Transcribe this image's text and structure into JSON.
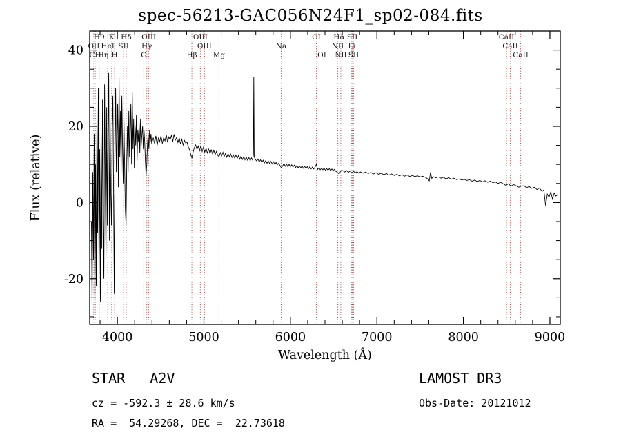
{
  "chart_data": {
    "type": "line",
    "title": "spec-56213-GAC056N24F1_sp02-084.fits",
    "xlabel": "Wavelength (Å)",
    "ylabel": "Flux (relative)",
    "xlim": [
      3680,
      9120
    ],
    "ylim": [
      -32,
      45
    ],
    "xticks": [
      4000,
      5000,
      6000,
      7000,
      8000,
      9000
    ],
    "yticks": [
      -20,
      0,
      20,
      40
    ],
    "grid": false,
    "legend": "none",
    "line_color": "#000000",
    "marker_line_color": "#a04848",
    "spectral_lines": [
      {
        "label": "H9",
        "wavelength": 3790,
        "row": 1
      },
      {
        "label": "K",
        "wavelength": 3934,
        "row": 1
      },
      {
        "label": "Hδ",
        "wavelength": 4102,
        "row": 1
      },
      {
        "label": "OIII",
        "wavelength": 4363,
        "row": 1
      },
      {
        "label": "OIII",
        "wavelength": 4959,
        "row": 1
      },
      {
        "label": "OI",
        "wavelength": 6300,
        "row": 1
      },
      {
        "label": "Hα",
        "wavelength": 6563,
        "row": 1
      },
      {
        "label": "SII",
        "wavelength": 6716,
        "row": 1
      },
      {
        "label": "CaII",
        "wavelength": 8498,
        "row": 1
      },
      {
        "label": "OII",
        "wavelength": 3727,
        "row": 2
      },
      {
        "label": "HeI",
        "wavelength": 3889,
        "row": 2
      },
      {
        "label": "SII",
        "wavelength": 4072,
        "row": 2
      },
      {
        "label": "Hγ",
        "wavelength": 4340,
        "row": 2
      },
      {
        "label": "OIII",
        "wavelength": 5007,
        "row": 2
      },
      {
        "label": "Na",
        "wavelength": 5893,
        "row": 2
      },
      {
        "label": "NII",
        "wavelength": 6548,
        "row": 2
      },
      {
        "label": "Li",
        "wavelength": 6708,
        "row": 2
      },
      {
        "label": "CaII",
        "wavelength": 8542,
        "row": 2
      },
      {
        "label": "CH",
        "wavelength": 3745,
        "row": 3
      },
      {
        "label": "Hη",
        "wavelength": 3835,
        "row": 3
      },
      {
        "label": "H",
        "wavelength": 3968,
        "row": 3
      },
      {
        "label": "G",
        "wavelength": 4305,
        "row": 3
      },
      {
        "label": "Hβ",
        "wavelength": 4861,
        "row": 3
      },
      {
        "label": "Mg",
        "wavelength": 5175,
        "row": 3
      },
      {
        "label": "OI",
        "wavelength": 6364,
        "row": 3
      },
      {
        "label": "NII",
        "wavelength": 6583,
        "row": 3
      },
      {
        "label": "SII",
        "wavelength": 6731,
        "row": 3
      },
      {
        "label": "CaII",
        "wavelength": 8662,
        "row": 3
      }
    ],
    "spectrum": [
      [
        3700,
        -5
      ],
      [
        3708,
        -28
      ],
      [
        3716,
        8
      ],
      [
        3724,
        -15
      ],
      [
        3732,
        18
      ],
      [
        3740,
        -30
      ],
      [
        3748,
        10
      ],
      [
        3756,
        -22
      ],
      [
        3764,
        24
      ],
      [
        3772,
        -8
      ],
      [
        3780,
        30
      ],
      [
        3788,
        -18
      ],
      [
        3796,
        14
      ],
      [
        3804,
        -26
      ],
      [
        3812,
        20
      ],
      [
        3820,
        -12
      ],
      [
        3828,
        27
      ],
      [
        3836,
        -4
      ],
      [
        3844,
        -20
      ],
      [
        3852,
        31
      ],
      [
        3860,
        5
      ],
      [
        3868,
        -15
      ],
      [
        3876,
        25
      ],
      [
        3884,
        -6
      ],
      [
        3892,
        18
      ],
      [
        3900,
        34
      ],
      [
        3908,
        -10
      ],
      [
        3916,
        22
      ],
      [
        3924,
        2
      ],
      [
        3932,
        -6
      ],
      [
        3940,
        20
      ],
      [
        3948,
        28
      ],
      [
        3956,
        3
      ],
      [
        3964,
        -24
      ],
      [
        3972,
        12
      ],
      [
        3980,
        30
      ],
      [
        3988,
        8
      ],
      [
        3996,
        18
      ],
      [
        4004,
        26
      ],
      [
        4012,
        4
      ],
      [
        4020,
        33
      ],
      [
        4028,
        12
      ],
      [
        4036,
        24
      ],
      [
        4044,
        8
      ],
      [
        4052,
        28
      ],
      [
        4060,
        15
      ],
      [
        4068,
        5
      ],
      [
        4076,
        22
      ],
      [
        4084,
        10
      ],
      [
        4092,
        -2
      ],
      [
        4100,
        -6
      ],
      [
        4108,
        10
      ],
      [
        4116,
        20
      ],
      [
        4124,
        8
      ],
      [
        4132,
        24
      ],
      [
        4140,
        12
      ],
      [
        4148,
        19
      ],
      [
        4156,
        26
      ],
      [
        4164,
        10
      ],
      [
        4172,
        29
      ],
      [
        4180,
        14
      ],
      [
        4188,
        22
      ],
      [
        4196,
        9
      ],
      [
        4204,
        20
      ],
      [
        4212,
        15
      ],
      [
        4220,
        23
      ],
      [
        4228,
        11
      ],
      [
        4236,
        19
      ],
      [
        4244,
        16
      ],
      [
        4252,
        21
      ],
      [
        4260,
        13
      ],
      [
        4268,
        22
      ],
      [
        4276,
        15
      ],
      [
        4284,
        18
      ],
      [
        4292,
        20
      ],
      [
        4300,
        14
      ],
      [
        4308,
        19
      ],
      [
        4316,
        16
      ],
      [
        4324,
        11
      ],
      [
        4332,
        7
      ],
      [
        4340,
        10
      ],
      [
        4348,
        15
      ],
      [
        4356,
        18
      ],
      [
        4364,
        14
      ],
      [
        4372,
        19
      ],
      [
        4380,
        16
      ],
      [
        4388,
        18
      ],
      [
        4396,
        15.5
      ],
      [
        4415,
        17
      ],
      [
        4430,
        15.5
      ],
      [
        4445,
        17.5
      ],
      [
        4460,
        15
      ],
      [
        4475,
        17
      ],
      [
        4490,
        16
      ],
      [
        4505,
        17.5
      ],
      [
        4520,
        15.5
      ],
      [
        4535,
        17
      ],
      [
        4550,
        16.2
      ],
      [
        4565,
        17.8
      ],
      [
        4580,
        15.8
      ],
      [
        4595,
        17.2
      ],
      [
        4610,
        16.5
      ],
      [
        4625,
        17.6
      ],
      [
        4640,
        16
      ],
      [
        4655,
        17.9
      ],
      [
        4670,
        16.4
      ],
      [
        4685,
        17.1
      ],
      [
        4700,
        15.8
      ],
      [
        4715,
        16.9
      ],
      [
        4730,
        15.4
      ],
      [
        4745,
        16.6
      ],
      [
        4760,
        15.1
      ],
      [
        4775,
        16.3
      ],
      [
        4790,
        15.6
      ],
      [
        4805,
        15.9
      ],
      [
        4820,
        14.6
      ],
      [
        4835,
        13.8
      ],
      [
        4850,
        12.4
      ],
      [
        4862,
        11.6
      ],
      [
        4875,
        13.2
      ],
      [
        4890,
        14.4
      ],
      [
        4905,
        15.1
      ],
      [
        4920,
        13.9
      ],
      [
        4935,
        14.8
      ],
      [
        4950,
        13.6
      ],
      [
        4965,
        14.9
      ],
      [
        4980,
        13.4
      ],
      [
        4995,
        14.5
      ],
      [
        5010,
        13.2
      ],
      [
        5025,
        14.2
      ],
      [
        5040,
        13.0
      ],
      [
        5055,
        14.0
      ],
      [
        5070,
        12.9
      ],
      [
        5085,
        13.8
      ],
      [
        5100,
        12.8
      ],
      [
        5115,
        13.7
      ],
      [
        5130,
        12.6
      ],
      [
        5145,
        13.4
      ],
      [
        5160,
        12.4
      ],
      [
        5175,
        12.0
      ],
      [
        5190,
        13.1
      ],
      [
        5205,
        12.3
      ],
      [
        5220,
        13.2
      ],
      [
        5235,
        12.1
      ],
      [
        5250,
        12.9
      ],
      [
        5265,
        11.9
      ],
      [
        5280,
        12.8
      ],
      [
        5295,
        12.0
      ],
      [
        5310,
        12.7
      ],
      [
        5325,
        11.8
      ],
      [
        5340,
        12.5
      ],
      [
        5355,
        11.7
      ],
      [
        5370,
        12.4
      ],
      [
        5385,
        11.6
      ],
      [
        5400,
        12.3
      ],
      [
        5415,
        11.4
      ],
      [
        5430,
        12.2
      ],
      [
        5445,
        11.3
      ],
      [
        5460,
        12.0
      ],
      [
        5475,
        11.2
      ],
      [
        5490,
        11.9
      ],
      [
        5505,
        11.1
      ],
      [
        5520,
        11.8
      ],
      [
        5535,
        11.0
      ],
      [
        5550,
        11.7
      ],
      [
        5562,
        11.2
      ],
      [
        5572,
        12.5
      ],
      [
        5577,
        33
      ],
      [
        5582,
        12.0
      ],
      [
        5595,
        11.3
      ],
      [
        5610,
        10.9
      ],
      [
        5625,
        11.4
      ],
      [
        5640,
        10.7
      ],
      [
        5655,
        11.2
      ],
      [
        5670,
        10.6
      ],
      [
        5685,
        11.1
      ],
      [
        5700,
        10.4
      ],
      [
        5715,
        11.0
      ],
      [
        5730,
        10.3
      ],
      [
        5745,
        10.9
      ],
      [
        5760,
        10.2
      ],
      [
        5775,
        10.8
      ],
      [
        5790,
        10.1
      ],
      [
        5805,
        10.7
      ],
      [
        5820,
        10.0
      ],
      [
        5835,
        10.5
      ],
      [
        5850,
        9.9
      ],
      [
        5865,
        10.3
      ],
      [
        5880,
        9.7
      ],
      [
        5895,
        9.1
      ],
      [
        5910,
        9.6
      ],
      [
        5925,
        10.2
      ],
      [
        5940,
        9.5
      ],
      [
        5955,
        10.1
      ],
      [
        5970,
        9.4
      ],
      [
        5985,
        10.0
      ],
      [
        6000,
        9.4
      ],
      [
        6015,
        9.9
      ],
      [
        6030,
        9.3
      ],
      [
        6045,
        9.8
      ],
      [
        6060,
        9.2
      ],
      [
        6075,
        9.7
      ],
      [
        6090,
        9.1
      ],
      [
        6105,
        9.6
      ],
      [
        6120,
        9.1
      ],
      [
        6135,
        9.6
      ],
      [
        6150,
        9.0
      ],
      [
        6165,
        9.5
      ],
      [
        6180,
        8.9
      ],
      [
        6195,
        9.4
      ],
      [
        6210,
        8.9
      ],
      [
        6225,
        9.4
      ],
      [
        6240,
        8.8
      ],
      [
        6255,
        9.3
      ],
      [
        6270,
        8.8
      ],
      [
        6285,
        9.3
      ],
      [
        6300,
        10.0
      ],
      [
        6315,
        8.7
      ],
      [
        6330,
        9.1
      ],
      [
        6345,
        8.6
      ],
      [
        6360,
        9.0
      ],
      [
        6375,
        8.6
      ],
      [
        6390,
        9.0
      ],
      [
        6405,
        8.5
      ],
      [
        6420,
        8.9
      ],
      [
        6435,
        8.5
      ],
      [
        6450,
        8.9
      ],
      [
        6465,
        8.4
      ],
      [
        6480,
        8.8
      ],
      [
        6495,
        8.4
      ],
      [
        6510,
        8.7
      ],
      [
        6525,
        8.2
      ],
      [
        6540,
        8.0
      ],
      [
        6555,
        7.7
      ],
      [
        6563,
        7.5
      ],
      [
        6578,
        8.1
      ],
      [
        6593,
        8.5
      ],
      [
        6610,
        8.3
      ],
      [
        6630,
        8.0
      ],
      [
        6650,
        8.4
      ],
      [
        6670,
        7.9
      ],
      [
        6690,
        8.3
      ],
      [
        6710,
        7.8
      ],
      [
        6730,
        8.2
      ],
      [
        6750,
        7.8
      ],
      [
        6770,
        8.1
      ],
      [
        6790,
        7.7
      ],
      [
        6810,
        8.0
      ],
      [
        6840,
        7.7
      ],
      [
        6870,
        8.0
      ],
      [
        6900,
        7.6
      ],
      [
        6930,
        7.9
      ],
      [
        6960,
        7.5
      ],
      [
        6990,
        7.8
      ],
      [
        7020,
        7.4
      ],
      [
        7050,
        7.7
      ],
      [
        7080,
        7.3
      ],
      [
        7110,
        7.6
      ],
      [
        7140,
        7.2
      ],
      [
        7170,
        7.5
      ],
      [
        7200,
        7.1
      ],
      [
        7230,
        7.4
      ],
      [
        7260,
        7.0
      ],
      [
        7290,
        7.3
      ],
      [
        7320,
        6.9
      ],
      [
        7350,
        7.2
      ],
      [
        7380,
        6.8
      ],
      [
        7410,
        7.1
      ],
      [
        7440,
        6.8
      ],
      [
        7470,
        7.0
      ],
      [
        7500,
        6.7
      ],
      [
        7530,
        6.9
      ],
      [
        7560,
        6.6
      ],
      [
        7590,
        6.2
      ],
      [
        7605,
        5.7
      ],
      [
        7620,
        7.9
      ],
      [
        7635,
        6.3
      ],
      [
        7650,
        6.8
      ],
      [
        7680,
        6.5
      ],
      [
        7710,
        6.7
      ],
      [
        7740,
        6.4
      ],
      [
        7770,
        6.6
      ],
      [
        7800,
        6.2
      ],
      [
        7830,
        6.5
      ],
      [
        7860,
        6.1
      ],
      [
        7890,
        6.4
      ],
      [
        7920,
        6.0
      ],
      [
        7950,
        6.2
      ],
      [
        7980,
        5.9
      ],
      [
        8010,
        6.1
      ],
      [
        8040,
        5.8
      ],
      [
        8070,
        6.0
      ],
      [
        8100,
        5.6
      ],
      [
        8130,
        5.9
      ],
      [
        8160,
        5.5
      ],
      [
        8190,
        5.8
      ],
      [
        8220,
        5.4
      ],
      [
        8250,
        5.7
      ],
      [
        8280,
        5.3
      ],
      [
        8310,
        5.6
      ],
      [
        8340,
        5.2
      ],
      [
        8370,
        5.4
      ],
      [
        8400,
        5.0
      ],
      [
        8430,
        5.3
      ],
      [
        8460,
        4.9
      ],
      [
        8490,
        4.5
      ],
      [
        8520,
        4.9
      ],
      [
        8550,
        4.3
      ],
      [
        8580,
        4.7
      ],
      [
        8610,
        4.4
      ],
      [
        8640,
        4.0
      ],
      [
        8670,
        4.3
      ],
      [
        8700,
        4.4
      ],
      [
        8730,
        3.9
      ],
      [
        8760,
        4.2
      ],
      [
        8790,
        3.7
      ],
      [
        8820,
        4.0
      ],
      [
        8850,
        3.4
      ],
      [
        8880,
        3.8
      ],
      [
        8910,
        2.9
      ],
      [
        8930,
        3.3
      ],
      [
        8950,
        -0.8
      ],
      [
        8970,
        2.2
      ],
      [
        8990,
        1.4
      ],
      [
        9010,
        2.8
      ],
      [
        9030,
        0.9
      ],
      [
        9050,
        2.5
      ],
      [
        9070,
        1.7
      ],
      [
        9090,
        2.1
      ]
    ]
  },
  "annotations": {
    "class_label": "STAR   A2V",
    "survey": "LAMOST DR3",
    "cz": "cz = -592.3 ± 28.6 km/s",
    "obs_date": "Obs-Date: 20121012",
    "coords": "RA =  54.29268, DEC =  22.73618"
  }
}
